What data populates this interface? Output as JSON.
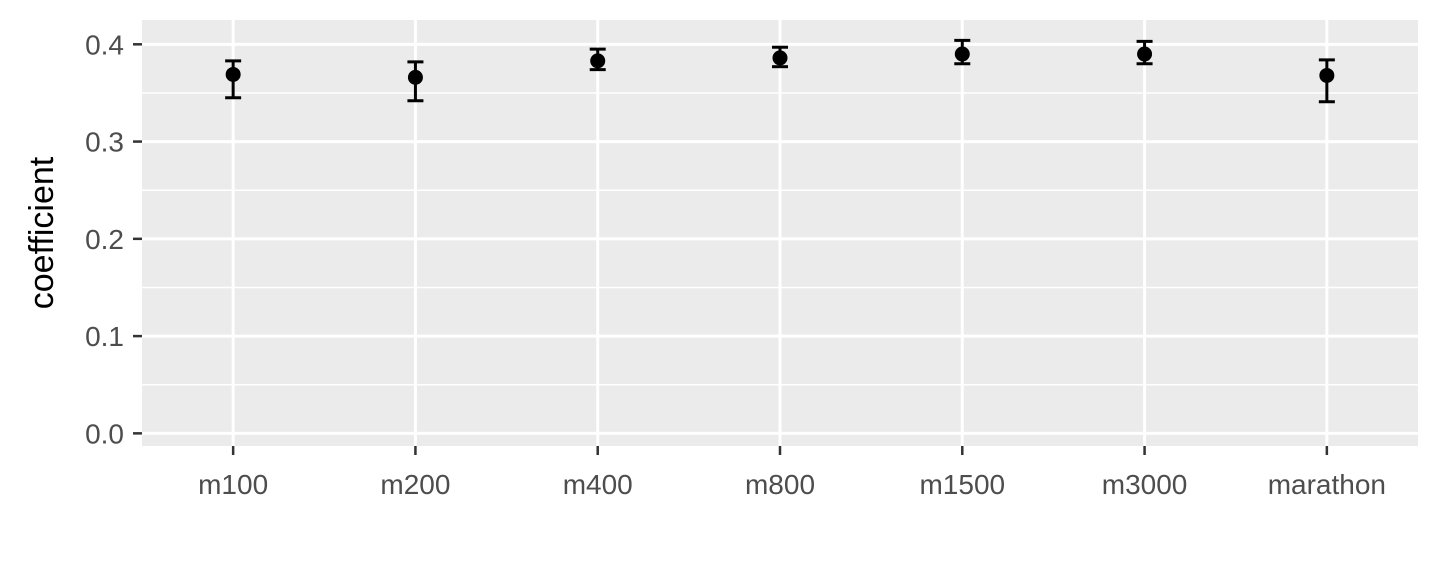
{
  "chart_data": {
    "type": "scatter",
    "title": "",
    "xlabel": "",
    "ylabel": "coefficient",
    "categories": [
      "m100",
      "m200",
      "m400",
      "m800",
      "m1500",
      "m3000",
      "marathon"
    ],
    "series": [
      {
        "values": [
          0.369,
          0.366,
          0.383,
          0.386,
          0.39,
          0.39,
          0.368
        ],
        "lower": [
          0.345,
          0.342,
          0.374,
          0.377,
          0.38,
          0.38,
          0.341
        ],
        "upper": [
          0.383,
          0.382,
          0.395,
          0.397,
          0.404,
          0.403,
          0.384
        ]
      }
    ],
    "ylim": [
      -0.013,
      0.425
    ],
    "yticks": [
      0.0,
      0.1,
      0.2,
      0.3,
      0.4
    ],
    "ytick_labels": [
      "0.0",
      "0.1",
      "0.2",
      "0.3",
      "0.4"
    ],
    "grid": true,
    "legend": "none",
    "colors": {
      "panel": "#ebebeb",
      "grid": "#ffffff",
      "point": "#000000",
      "tick_text": "#4d4d4d"
    }
  }
}
